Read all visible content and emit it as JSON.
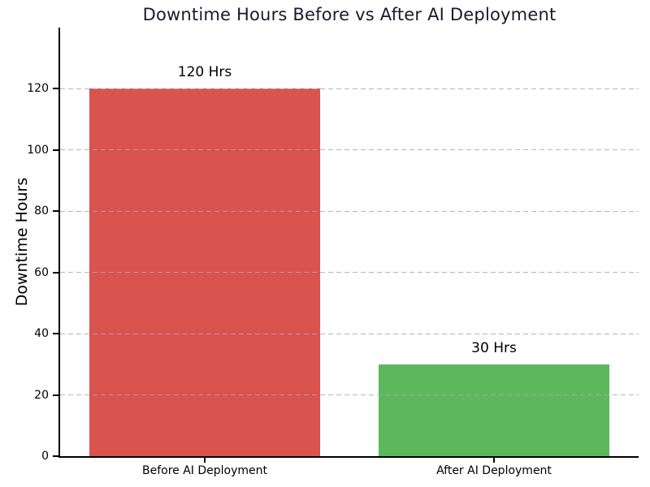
{
  "page": {
    "background_color": "#ffffff"
  },
  "chart": {
    "title_color": "#1a1a2e",
    "axis_color": "#000000",
    "tick_label_color": "#000000",
    "grid_color": "#aaaaaa"
  },
  "chart_data": {
    "type": "bar",
    "title": "Downtime Hours Before vs After AI Deployment",
    "xlabel": "",
    "ylabel": "Downtime Hours",
    "categories": [
      "Before AI Deployment",
      "After AI Deployment"
    ],
    "values": [
      120,
      30
    ],
    "bar_labels": [
      "120 Hrs",
      "30 Hrs"
    ],
    "bar_colors": [
      "#d9534f",
      "#5cb85c"
    ],
    "ylim": [
      0,
      140
    ],
    "yticks": [
      0,
      20,
      40,
      60,
      80,
      100,
      120
    ],
    "grid": "horizontal-dashed",
    "grid_above_bars": true,
    "legend": "none",
    "bar_width_fraction": 0.8
  }
}
